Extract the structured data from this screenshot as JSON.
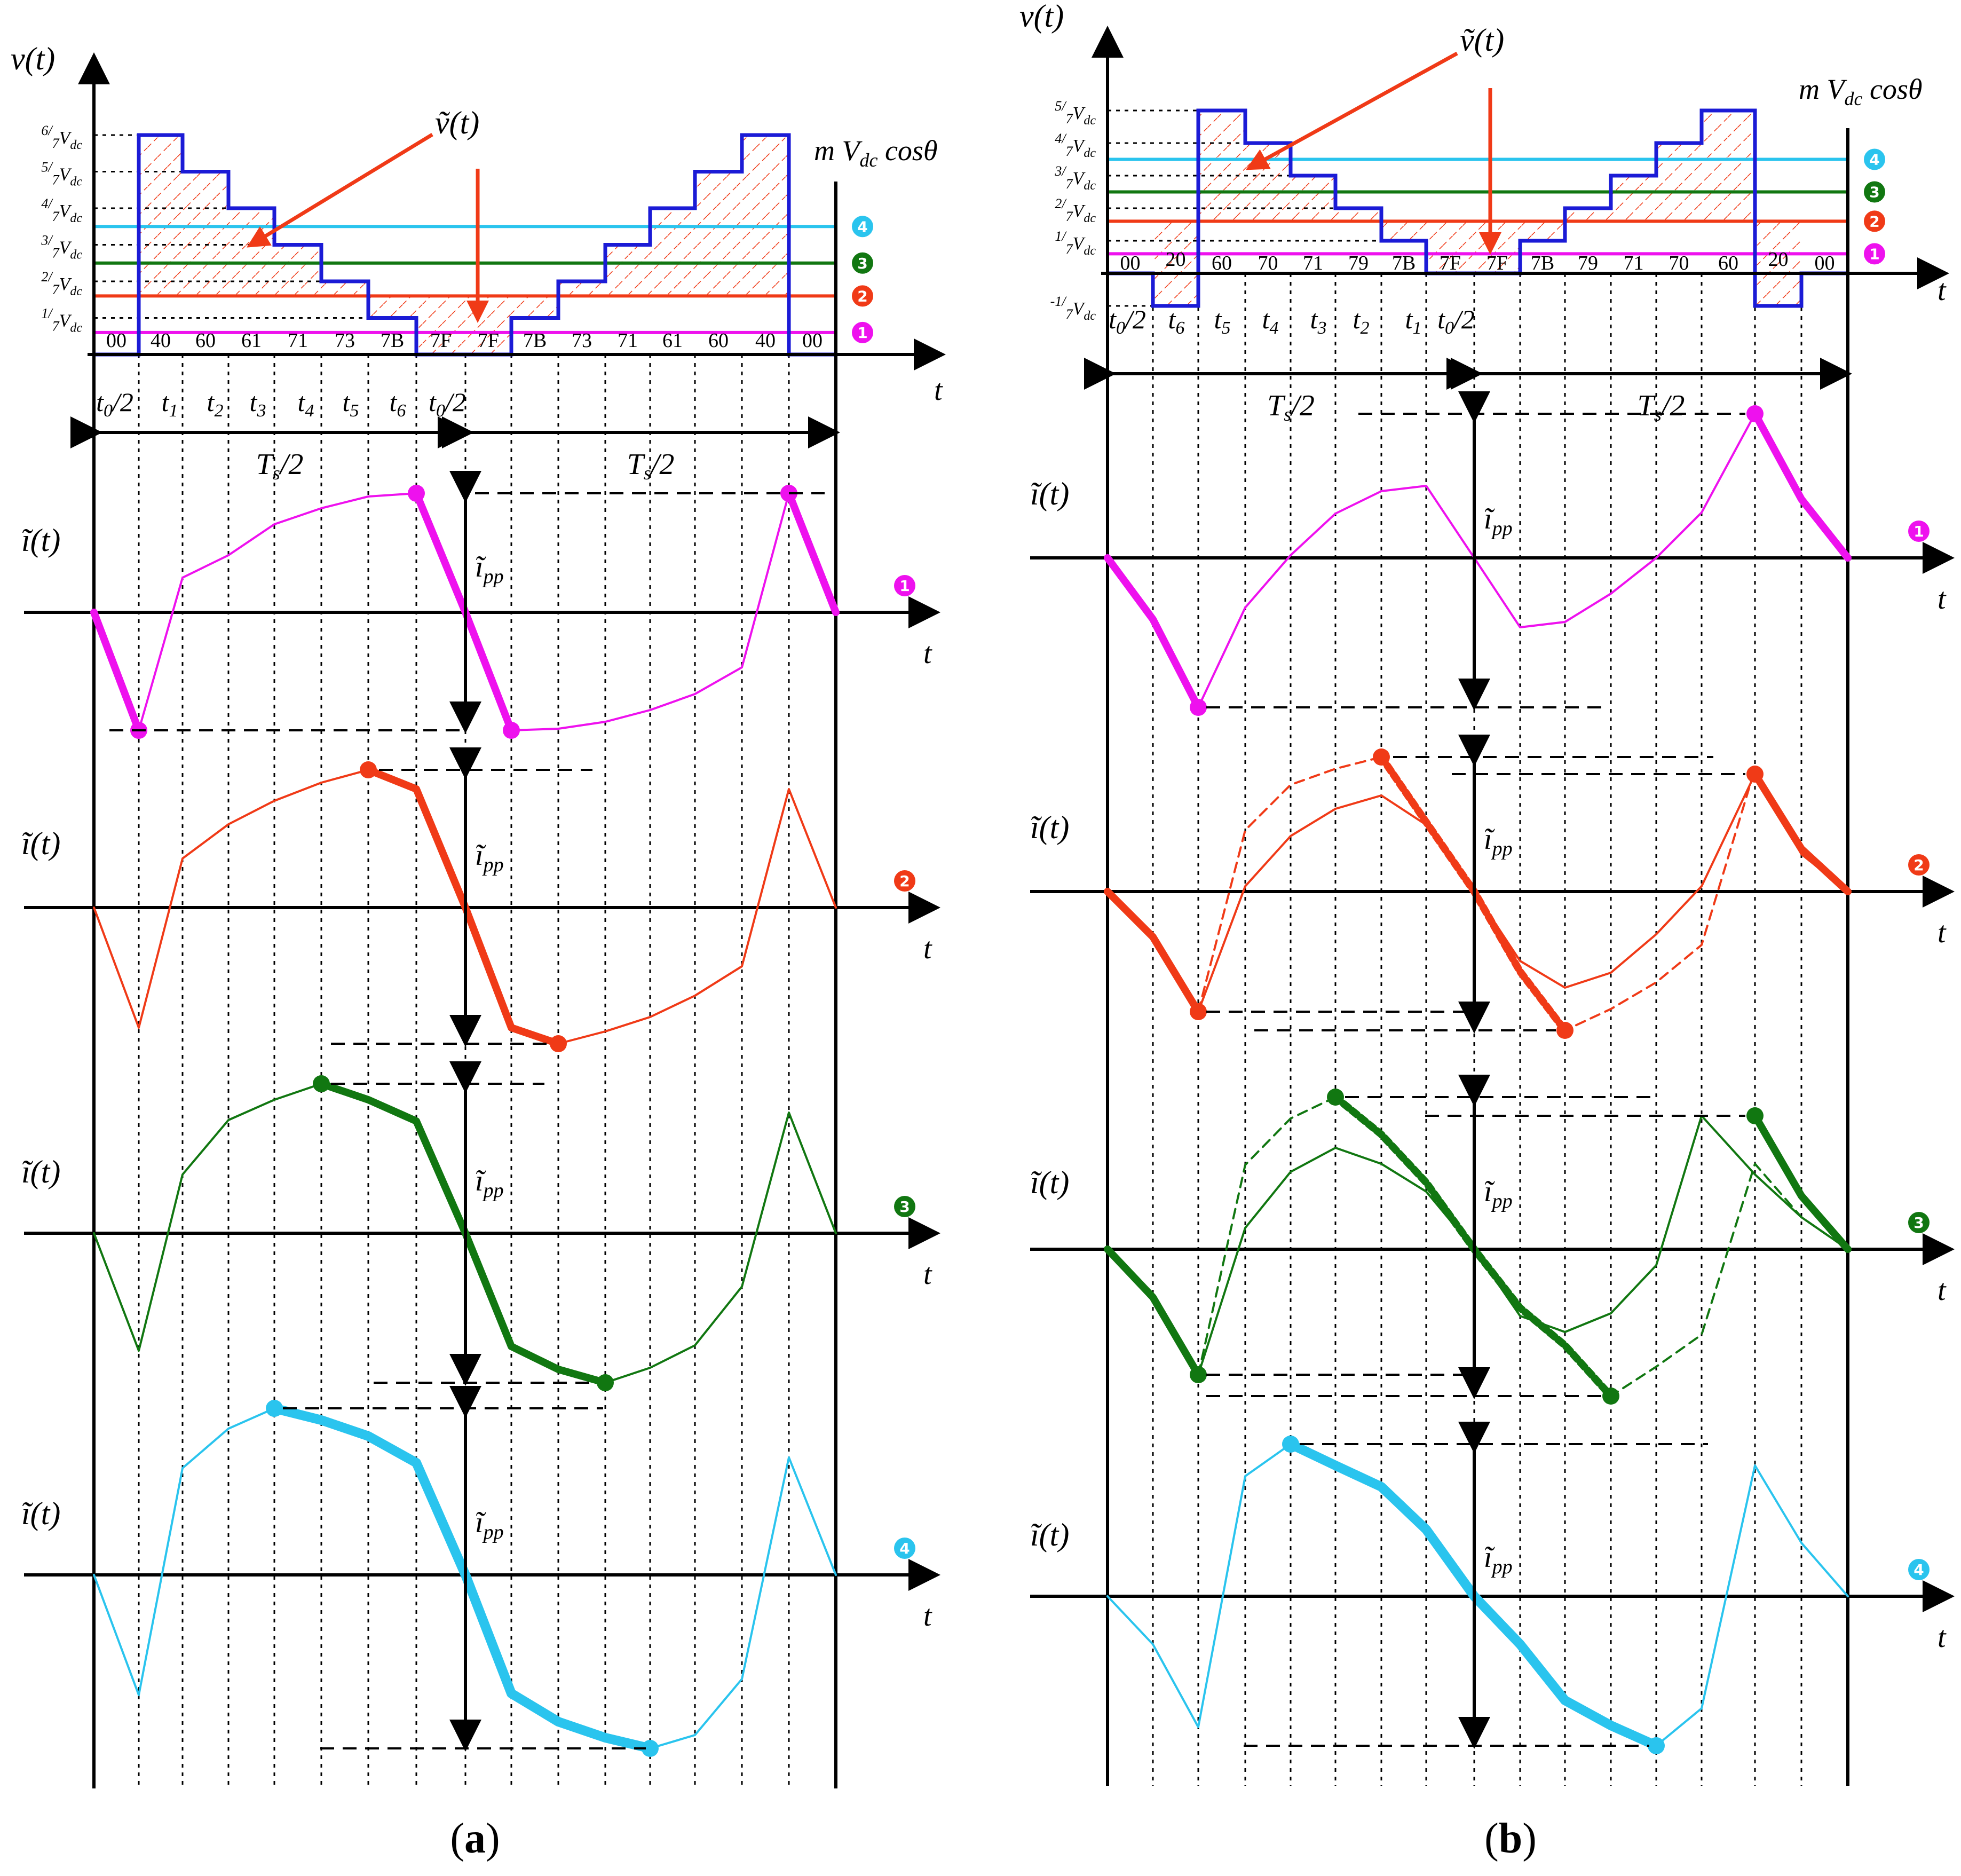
{
  "panel_a": {
    "caption": "(a)",
    "y_axis": "v(t)",
    "t_axis": "t",
    "vtilde": "ṽ(t)",
    "ref_label": "m V",
    "ref_sub": "dc",
    "ref_tail": "cosθ",
    "level_labels": [
      {
        "num": "6",
        "den": "7",
        "sub": "dc"
      },
      {
        "num": "5",
        "den": "7",
        "sub": "dc"
      },
      {
        "num": "4",
        "den": "7",
        "sub": "dc"
      },
      {
        "num": "3",
        "den": "7",
        "sub": "dc"
      },
      {
        "num": "2",
        "den": "7",
        "sub": "dc"
      },
      {
        "num": "1",
        "den": "7",
        "sub": "dc"
      }
    ],
    "level_V": "V",
    "state_codes": [
      "00",
      "40",
      "60",
      "61",
      "71",
      "73",
      "7B",
      "7F",
      "7F",
      "7B",
      "73",
      "71",
      "61",
      "60",
      "40",
      "00"
    ],
    "time_labels": [
      "t0/2",
      "t1",
      "t2",
      "t3",
      "t4",
      "t5",
      "t6",
      "t0/2"
    ],
    "half_period": [
      "Ts/2",
      "Ts/2"
    ],
    "current_label": "ĩ(t)",
    "ipp_label": "ĩpp",
    "markers": [
      "1",
      "2",
      "3",
      "4"
    ],
    "steps_sevenths": [
      0,
      6,
      5,
      4,
      3,
      2,
      1,
      0,
      0,
      1,
      2,
      3,
      4,
      5,
      6,
      0
    ],
    "ref_levels_sevenths": [
      0.6,
      1.6,
      2.5,
      3.5
    ]
  },
  "panel_b": {
    "caption": "(b)",
    "y_axis": "v(t)",
    "t_axis": "t",
    "vtilde": "ṽ(t)",
    "ref_label": "m V",
    "ref_sub": "dc",
    "ref_tail": "cosθ",
    "level_labels": [
      {
        "num": "5",
        "den": "7",
        "sub": "dc"
      },
      {
        "num": "4",
        "den": "7",
        "sub": "dc"
      },
      {
        "num": "3",
        "den": "7",
        "sub": "dc"
      },
      {
        "num": "2",
        "den": "7",
        "sub": "dc"
      },
      {
        "num": "1",
        "den": "7",
        "sub": "dc"
      },
      {
        "num": "-1",
        "den": "7",
        "sub": "dc"
      }
    ],
    "level_V": "V",
    "state_codes": [
      "00",
      "20",
      "60",
      "70",
      "71",
      "79",
      "7B",
      "7F",
      "7F",
      "7B",
      "79",
      "71",
      "70",
      "60",
      "20",
      "00"
    ],
    "time_labels": [
      "t0/2",
      "t6",
      "t5",
      "t4",
      "t3",
      "t2",
      "t1",
      "t0/2"
    ],
    "half_period": [
      "Ts/2",
      "Ts/2"
    ],
    "current_label": "ĩ(t)",
    "ipp_label": "ĩpp",
    "markers": [
      "1",
      "2",
      "3",
      "4"
    ],
    "steps_sevenths": [
      0,
      -1,
      5,
      4,
      3,
      2,
      1,
      0,
      0,
      1,
      2,
      3,
      4,
      5,
      -1,
      0
    ],
    "ref_levels_sevenths": [
      0.6,
      1.6,
      2.5,
      3.5
    ]
  },
  "colors": {
    "stair": "#1b1bd6",
    "hatch": "#f03a17",
    "c1": "#ee11ee",
    "c2": "#f03a17",
    "c3": "#117711",
    "c4": "#2ac4ee",
    "arrow": "#f03a17"
  }
}
